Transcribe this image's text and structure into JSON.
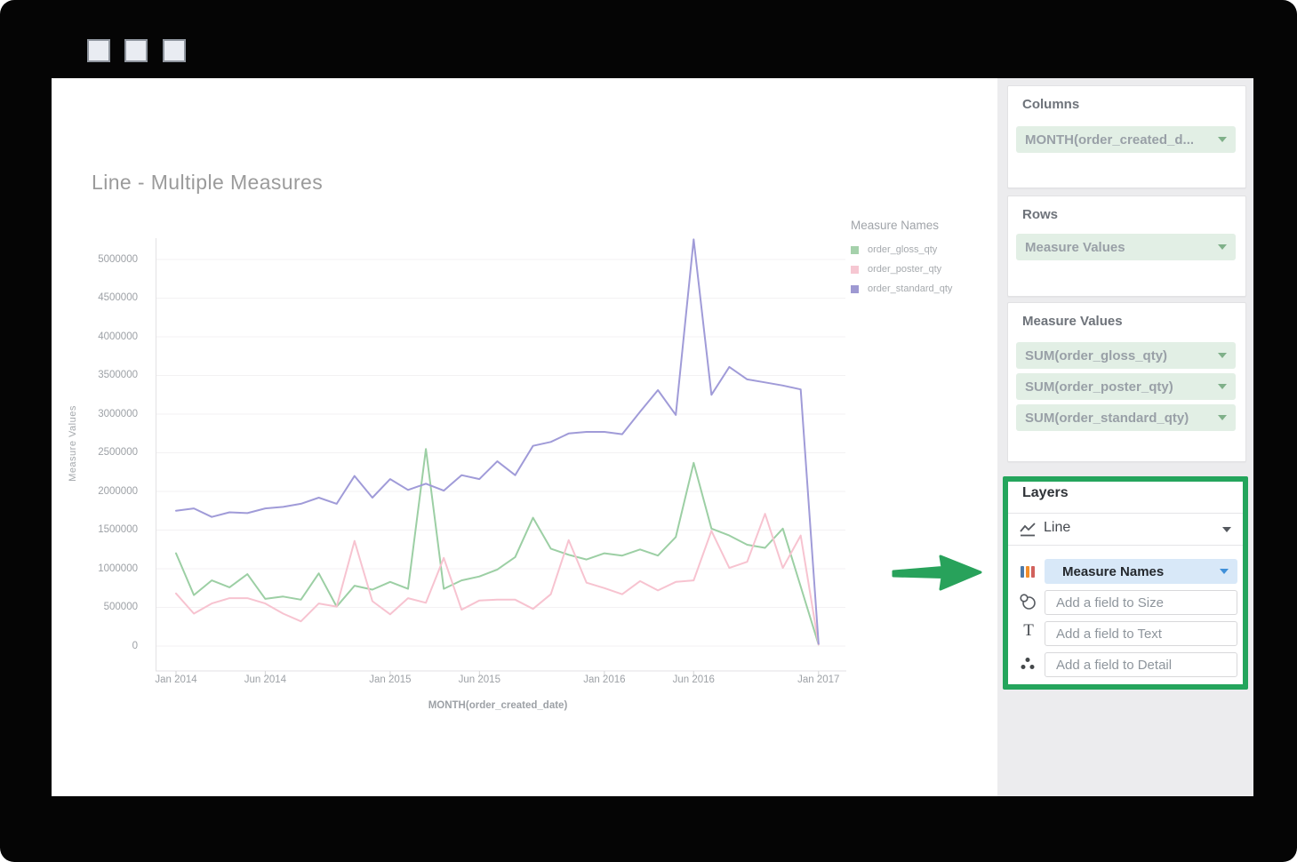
{
  "chart": {
    "title": "Line - Multiple Measures",
    "y_axis_label": "Measure Values",
    "x_axis_label": "MONTH(order_created_date)",
    "legend": {
      "title": "Measure Names",
      "items": [
        {
          "label": "order_gloss_qty",
          "color": "#a5d1ab"
        },
        {
          "label": "order_poster_qty",
          "color": "#f6c7d2"
        },
        {
          "label": "order_standard_qty",
          "color": "#9e99d2"
        }
      ]
    }
  },
  "chart_data": {
    "type": "line",
    "title": "Line - Multiple Measures",
    "xlabel": "MONTH(order_created_date)",
    "ylabel": "Measure Values",
    "ylim": [
      0,
      5000000
    ],
    "y_tick_step": 500000,
    "grid": true,
    "legend_position": "right",
    "x": [
      "Jan 2014",
      "Feb 2014",
      "Mar 2014",
      "Apr 2014",
      "May 2014",
      "Jun 2014",
      "Jul 2014",
      "Aug 2014",
      "Sep 2014",
      "Oct 2014",
      "Nov 2014",
      "Dec 2014",
      "Jan 2015",
      "Feb 2015",
      "Mar 2015",
      "Apr 2015",
      "May 2015",
      "Jun 2015",
      "Jul 2015",
      "Aug 2015",
      "Sep 2015",
      "Oct 2015",
      "Nov 2015",
      "Dec 2015",
      "Jan 2016",
      "Feb 2016",
      "Mar 2016",
      "Apr 2016",
      "May 2016",
      "Jun 2016",
      "Jul 2016",
      "Aug 2016",
      "Sep 2016",
      "Oct 2016",
      "Nov 2016",
      "Dec 2016",
      "Jan 2017"
    ],
    "x_tick_indices": [
      0,
      5,
      12,
      17,
      24,
      29,
      36
    ],
    "x_tick_labels": [
      "Jan 2014",
      "Jun 2014",
      "Jan 2015",
      "Jun 2015",
      "Jan 2016",
      "Jun 2016",
      "Jan 2017"
    ],
    "series": [
      {
        "name": "order_gloss_qty",
        "color": "#9ccfa4",
        "values": [
          1200000,
          660000,
          850000,
          760000,
          930000,
          610000,
          640000,
          600000,
          940000,
          510000,
          780000,
          730000,
          830000,
          740000,
          2550000,
          740000,
          850000,
          900000,
          990000,
          1150000,
          1660000,
          1260000,
          1180000,
          1120000,
          1200000,
          1170000,
          1250000,
          1170000,
          1410000,
          2370000,
          1520000,
          1430000,
          1310000,
          1270000,
          1520000,
          770000,
          20000
        ]
      },
      {
        "name": "order_poster_qty",
        "color": "#f7c3d0",
        "values": [
          680000,
          420000,
          550000,
          620000,
          620000,
          550000,
          420000,
          320000,
          550000,
          510000,
          1360000,
          580000,
          410000,
          620000,
          560000,
          1140000,
          470000,
          590000,
          600000,
          600000,
          480000,
          670000,
          1370000,
          820000,
          750000,
          670000,
          840000,
          720000,
          830000,
          850000,
          1490000,
          1010000,
          1090000,
          1710000,
          1010000,
          1430000,
          20000
        ]
      },
      {
        "name": "order_standard_qty",
        "color": "#a09bd8",
        "values": [
          1750000,
          1780000,
          1670000,
          1730000,
          1720000,
          1780000,
          1800000,
          1840000,
          1920000,
          1840000,
          2200000,
          1920000,
          2160000,
          2020000,
          2100000,
          2010000,
          2210000,
          2160000,
          2390000,
          2210000,
          2590000,
          2640000,
          2750000,
          2770000,
          2770000,
          2740000,
          3030000,
          3310000,
          2990000,
          5260000,
          3250000,
          3610000,
          3450000,
          3410000,
          3370000,
          3320000,
          30000
        ]
      }
    ]
  },
  "shelves": {
    "columns": {
      "title": "Columns",
      "field": "MONTH(order_created_d..."
    },
    "rows": {
      "title": "Rows",
      "field": "Measure Values"
    },
    "measure_values": {
      "title": "Measure Values",
      "fields": [
        "SUM(order_gloss_qty)",
        "SUM(order_poster_qty)",
        "SUM(order_standard_qty)"
      ]
    }
  },
  "layers": {
    "title": "Layers",
    "layer_type": "Line",
    "color_field": "Measure Names",
    "size_placeholder": "Add a field to Size",
    "text_placeholder": "Add a field to Text",
    "detail_placeholder": "Add a field to Detail"
  },
  "colors": {
    "highlight_green": "#24a55c",
    "arrow_green": "#28a25b",
    "green_pill_bg": "#e2efe5",
    "blue_pill_bg": "#d8e8f8",
    "gridline": "#f3f1f3",
    "axis_line": "#e3e2e4"
  }
}
